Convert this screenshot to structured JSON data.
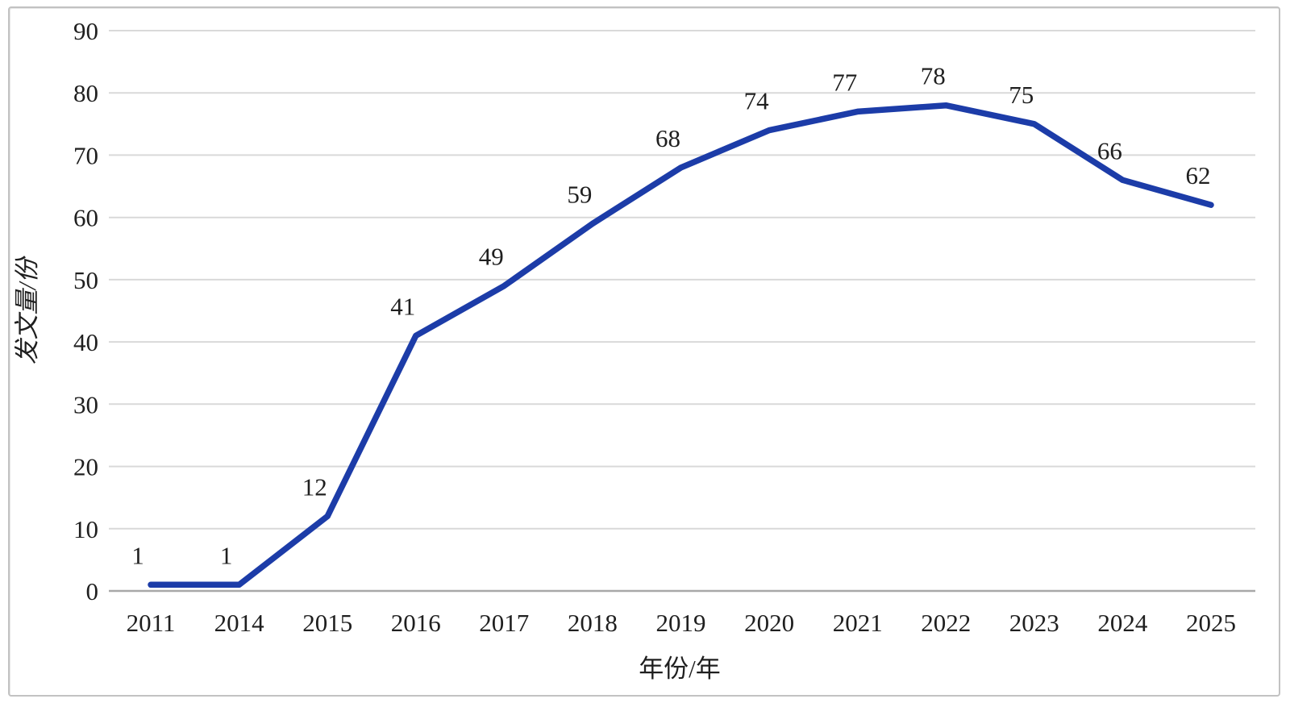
{
  "chart_data": {
    "type": "line",
    "categories": [
      "2011",
      "2014",
      "2015",
      "2016",
      "2017",
      "2018",
      "2019",
      "2020",
      "2021",
      "2022",
      "2023",
      "2024",
      "2025"
    ],
    "values": [
      1,
      1,
      12,
      41,
      49,
      59,
      68,
      74,
      77,
      78,
      75,
      66,
      62
    ],
    "title": "",
    "xlabel": "年份/年",
    "ylabel": "发文量/份",
    "ylim": [
      0,
      90
    ],
    "y_ticks": [
      0,
      10,
      20,
      30,
      40,
      50,
      60,
      70,
      80,
      90
    ],
    "grid": "horizontal-only",
    "legend": "none",
    "data_labels": true,
    "colors": {
      "line": "#1C3CA8",
      "gridline": "#D9D9D9",
      "axis_line": "#A8A8A8",
      "text": "#1F1F1F",
      "border": "#C2C2C2",
      "background": "#FFFFFF"
    }
  }
}
